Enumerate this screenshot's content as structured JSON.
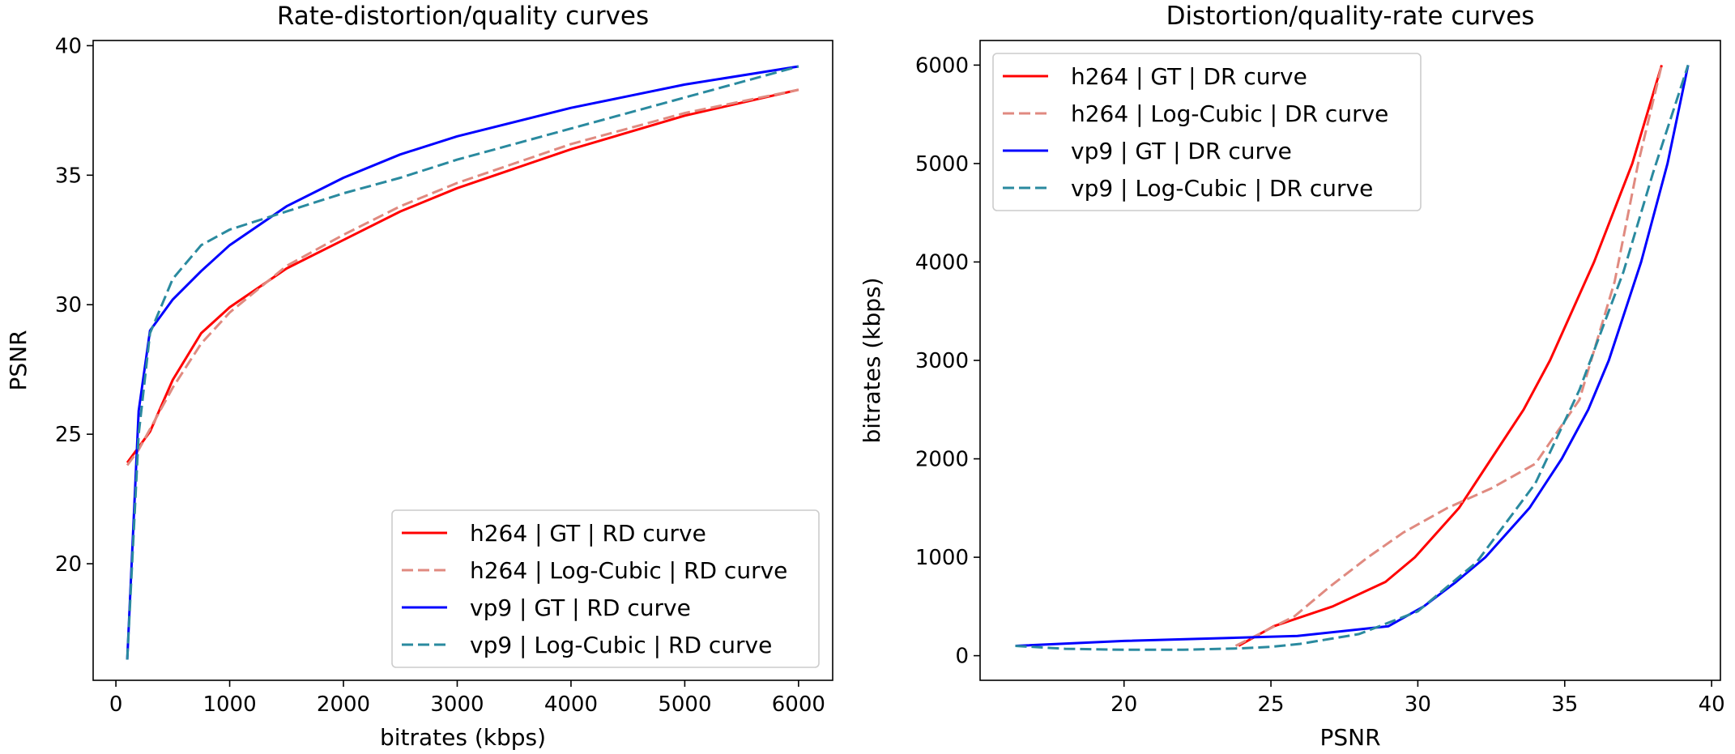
{
  "chart_data": [
    {
      "type": "line",
      "title": "Rate-distortion/quality curves",
      "xlabel": "bitrates (kbps)",
      "ylabel": "PSNR",
      "xlim": [
        -200,
        6300
      ],
      "ylim": [
        15.5,
        40.2
      ],
      "xticks": [
        0,
        1000,
        2000,
        3000,
        4000,
        5000,
        6000
      ],
      "yticks": [
        20,
        25,
        30,
        35,
        40
      ],
      "legend_position": "lower right",
      "series": [
        {
          "name": "h264 | GT | RD curve",
          "color": "#ff0000",
          "dash": "solid",
          "x": [
            100,
            200,
            300,
            500,
            750,
            1000,
            1500,
            2000,
            2500,
            3000,
            4000,
            5000,
            6000
          ],
          "y": [
            23.9,
            24.5,
            25.1,
            27.1,
            28.9,
            29.9,
            31.4,
            32.5,
            33.6,
            34.5,
            36.0,
            37.3,
            38.3
          ]
        },
        {
          "name": "h264 | Log-Cubic | RD curve",
          "color": "#e08a80",
          "dash": "dashed",
          "x": [
            100,
            200,
            300,
            500,
            750,
            1000,
            1500,
            2000,
            2500,
            3000,
            4000,
            5000,
            6000
          ],
          "y": [
            23.8,
            24.4,
            25.2,
            26.8,
            28.5,
            29.7,
            31.5,
            32.7,
            33.8,
            34.7,
            36.2,
            37.4,
            38.3
          ]
        },
        {
          "name": "vp9 | GT | RD curve",
          "color": "#0000ff",
          "dash": "solid",
          "x": [
            100,
            200,
            300,
            500,
            750,
            1000,
            1500,
            2000,
            2500,
            3000,
            4000,
            5000,
            6000
          ],
          "y": [
            16.3,
            25.9,
            29.0,
            30.2,
            31.3,
            32.3,
            33.8,
            34.9,
            35.8,
            36.5,
            37.6,
            38.5,
            39.2
          ]
        },
        {
          "name": "vp9 | Log-Cubic | RD curve",
          "color": "#2a8a9f",
          "dash": "dashed",
          "x": [
            100,
            200,
            300,
            500,
            750,
            1000,
            1500,
            2000,
            2500,
            3000,
            4000,
            5000,
            6000
          ],
          "y": [
            16.3,
            25.0,
            28.9,
            31.0,
            32.3,
            32.9,
            33.6,
            34.3,
            34.9,
            35.6,
            36.8,
            38.0,
            39.2
          ]
        }
      ]
    },
    {
      "type": "line",
      "title": "Distortion/quality-rate curves",
      "xlabel": "PSNR",
      "ylabel": "bitrates (kbps)",
      "xlim": [
        15.1,
        40.3
      ],
      "ylim": [
        -250,
        6250
      ],
      "xticks": [
        20,
        25,
        30,
        35,
        40
      ],
      "yticks": [
        0,
        1000,
        2000,
        3000,
        4000,
        5000,
        6000
      ],
      "legend_position": "upper left",
      "series": [
        {
          "name": "h264 | GT | DR curve",
          "color": "#ff0000",
          "dash": "solid",
          "x": [
            23.9,
            24.5,
            25.1,
            27.1,
            28.9,
            29.9,
            31.4,
            32.5,
            33.6,
            34.5,
            36.0,
            37.3,
            38.3
          ],
          "y": [
            100,
            200,
            300,
            500,
            750,
            1000,
            1500,
            2000,
            2500,
            3000,
            4000,
            5000,
            6000
          ]
        },
        {
          "name": "h264 | Log-Cubic | DR curve",
          "color": "#e08a80",
          "dash": "dashed",
          "x": [
            23.8,
            24.8,
            25.8,
            27.0,
            28.3,
            29.5,
            31.0,
            32.5,
            34.0,
            35.5,
            36.7,
            37.5,
            38.3
          ],
          "y": [
            100,
            250,
            400,
            700,
            1000,
            1250,
            1500,
            1700,
            1950,
            2600,
            3800,
            5000,
            6000
          ]
        },
        {
          "name": "vp9 | GT | DR curve",
          "color": "#0000ff",
          "dash": "solid",
          "x": [
            16.3,
            20.0,
            25.9,
            29.0,
            30.2,
            31.3,
            32.3,
            33.8,
            34.9,
            35.8,
            36.5,
            37.6,
            38.5,
            39.2
          ],
          "y": [
            100,
            150,
            200,
            300,
            500,
            750,
            1000,
            1500,
            2000,
            2500,
            3000,
            4000,
            5000,
            6000
          ]
        },
        {
          "name": "vp9 | Log-Cubic | DR curve",
          "color": "#2a8a9f",
          "dash": "dashed",
          "x": [
            16.3,
            18.0,
            20.0,
            22.0,
            24.0,
            25.0,
            26.0,
            28.0,
            30.0,
            32.0,
            34.0,
            35.5,
            37.0,
            38.0,
            39.2
          ],
          "y": [
            100,
            70,
            60,
            60,
            75,
            90,
            120,
            220,
            450,
            950,
            1750,
            2700,
            3900,
            4900,
            6000
          ]
        }
      ]
    }
  ]
}
